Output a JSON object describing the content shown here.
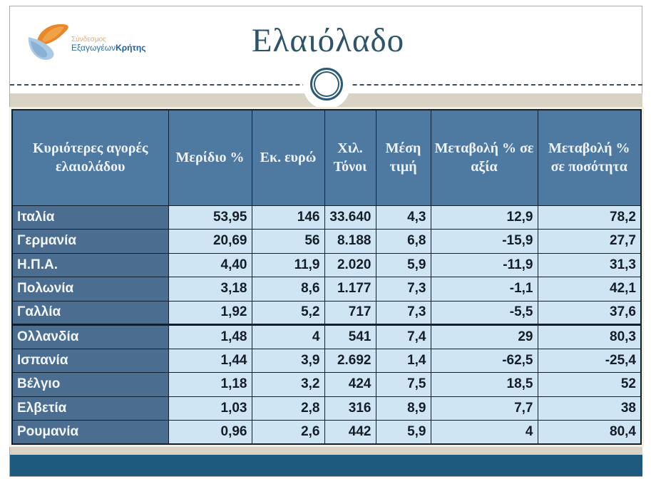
{
  "slide": {
    "title": "Ελαιόλαδο",
    "logo": {
      "line1": "Σύνδεσμος",
      "line2_regular": "Εξαγωγέων",
      "line2_bold": "Κρήτης"
    },
    "colors": {
      "header_blue": "#4e79a1",
      "row_label_blue": "#4b6e90",
      "cell_light_blue": "#cfe5f3",
      "footer_bar_blue": "#1e5a7e",
      "band_beige": "#d9d3c6",
      "title_color": "#2d5468",
      "logo_orange": "#e8882a",
      "logo_light_blue": "#a9c9e4"
    },
    "table": {
      "headers": [
        "Κυριότερες αγορές ελαιολάδου",
        "Μερίδιο %",
        "Εκ. ευρώ",
        "Χιλ. Τόνοι",
        "Μέση τιμή",
        "Μεταβολή % σε αξία",
        "Μεταβολή % σε ποσότητα"
      ],
      "rows": [
        [
          "Ιταλία",
          "53,95",
          "146",
          "33.640",
          "4,3",
          "12,9",
          "78,2"
        ],
        [
          "Γερμανία",
          "20,69",
          "56",
          "8.188",
          "6,8",
          "-15,9",
          "27,7"
        ],
        [
          "Η.Π.Α.",
          "4,40",
          "11,9",
          "2.020",
          "5,9",
          "-11,9",
          "31,3"
        ],
        [
          "Πολωνία",
          "3,18",
          "8,6",
          "1.177",
          "7,3",
          "-1,1",
          "42,1"
        ],
        [
          "Γαλλία",
          "1,92",
          "5,2",
          "717",
          "7,3",
          "-5,5",
          "37,6"
        ],
        [
          "Ολλανδία",
          "1,48",
          "4",
          "541",
          "7,4",
          "29",
          "80,3"
        ],
        [
          "Ισπανία",
          "1,44",
          "3,9",
          "2.692",
          "1,4",
          "-62,5",
          "-25,4"
        ],
        [
          "Βέλγιο",
          "1,18",
          "3,2",
          "424",
          "7,5",
          "18,5",
          "52"
        ],
        [
          "Ελβετία",
          "1,03",
          "2,8",
          "316",
          "8,9",
          "7,7",
          "38"
        ],
        [
          "Ρουμανία",
          "0,96",
          "2,6",
          "442",
          "5,9",
          "4",
          "80,4"
        ]
      ]
    }
  }
}
